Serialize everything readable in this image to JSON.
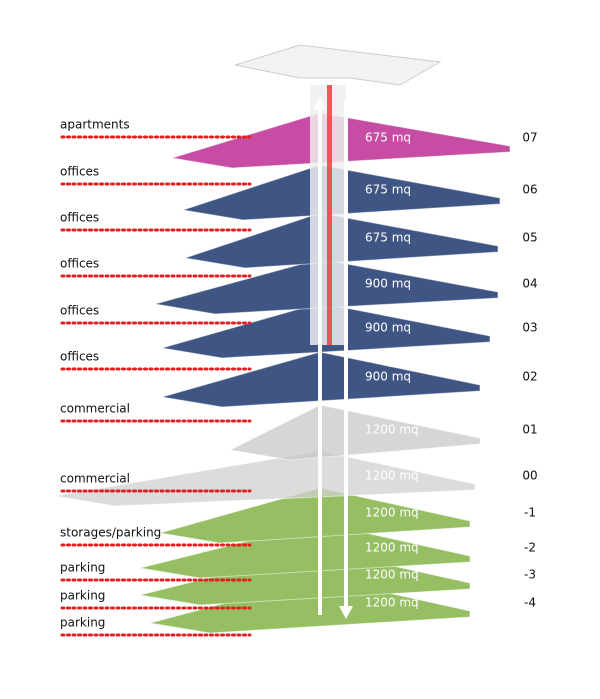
{
  "floors": [
    {
      "use": "apartments",
      "area": "675 mq",
      "level": "07"
    },
    {
      "use": "offices",
      "area": "675 mq",
      "level": "06"
    },
    {
      "use": "offices",
      "area": "675 mq",
      "level": "05"
    },
    {
      "use": "offices",
      "area": "900 mq",
      "level": "04"
    },
    {
      "use": "offices",
      "area": "900 mq",
      "level": "03"
    },
    {
      "use": "offices",
      "area": "900 mq",
      "level": "02"
    },
    {
      "use": "commercial",
      "area": "1200 mq",
      "level": "01"
    },
    {
      "use": "commercial",
      "area": "1200 mq",
      "level": "00"
    },
    {
      "use": "storages/parking",
      "area": "1200 mq",
      "level": "-1"
    },
    {
      "use": "parking",
      "area": "1200 mq",
      "level": "-2"
    },
    {
      "use": "parking",
      "area": "1200 mq",
      "level": "-3"
    },
    {
      "use": "parking",
      "area": "1200 mq",
      "level": "-4"
    }
  ]
}
